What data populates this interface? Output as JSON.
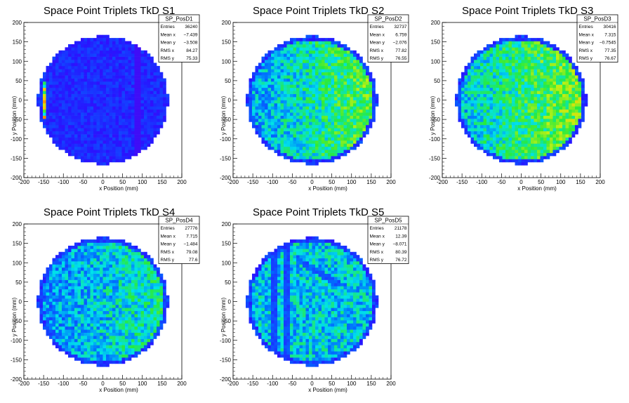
{
  "chart_data": [
    {
      "type": "heatmap",
      "title": "Space Point Triplets TkD S1",
      "xlabel": "x Position (mm)",
      "ylabel": "y Position (mm)",
      "xlim": [
        -200,
        200
      ],
      "ylim": [
        -200,
        200
      ],
      "xticks": [
        -200,
        -150,
        -100,
        -50,
        0,
        50,
        100,
        150,
        200
      ],
      "yticks": [
        -200,
        -150,
        -100,
        -50,
        0,
        50,
        100,
        150,
        200
      ],
      "legend": "top-right",
      "stats": {
        "name": "SP_PosD1",
        "rows": [
          {
            "label": "Entries",
            "value": "36240"
          },
          {
            "label": "Mean x",
            "value": "−7.439"
          },
          {
            "label": "Mean y",
            "value": "−3.508"
          },
          {
            "label": "RMS x",
            "value": "84.27"
          },
          {
            "label": "RMS y",
            "value": "75.33"
          }
        ]
      },
      "pattern": "low-blue",
      "occupancy_level": 0.15
    },
    {
      "type": "heatmap",
      "title": "Space Point Triplets TkD S2",
      "xlabel": "x Position (mm)",
      "ylabel": "y Position (mm)",
      "xlim": [
        -200,
        200
      ],
      "ylim": [
        -200,
        200
      ],
      "xticks": [
        -200,
        -150,
        -100,
        -50,
        0,
        50,
        100,
        150,
        200
      ],
      "yticks": [
        -200,
        -150,
        -100,
        -50,
        0,
        50,
        100,
        150,
        200
      ],
      "legend": "top-right",
      "stats": {
        "name": "SP_PosD2",
        "rows": [
          {
            "label": "Entries",
            "value": "32737"
          },
          {
            "label": "Mean x",
            "value": "6.759"
          },
          {
            "label": "Mean y",
            "value": "−2.076"
          },
          {
            "label": "RMS x",
            "value": "77.82"
          },
          {
            "label": "RMS y",
            "value": "76.55"
          }
        ]
      },
      "pattern": "green-yellow",
      "occupancy_level": 0.5
    },
    {
      "type": "heatmap",
      "title": "Space Point Triplets TkD S3",
      "xlabel": "x Position (mm)",
      "ylabel": "y Position (mm)",
      "xlim": [
        -200,
        200
      ],
      "ylim": [
        -200,
        200
      ],
      "xticks": [
        -200,
        -150,
        -100,
        -50,
        0,
        50,
        100,
        150,
        200
      ],
      "yticks": [
        -200,
        -150,
        -100,
        -50,
        0,
        50,
        100,
        150,
        200
      ],
      "legend": "top-right",
      "stats": {
        "name": "SP_PosD3",
        "rows": [
          {
            "label": "Entries",
            "value": "30416"
          },
          {
            "label": "Mean x",
            "value": "7.315"
          },
          {
            "label": "Mean y",
            "value": "−0.7545"
          },
          {
            "label": "RMS x",
            "value": "77.35"
          },
          {
            "label": "RMS y",
            "value": "76.67"
          }
        ]
      },
      "pattern": "green-yellow",
      "occupancy_level": 0.55
    },
    {
      "type": "heatmap",
      "title": "Space Point Triplets TkD S4",
      "xlabel": "x Position (mm)",
      "ylabel": "y Position (mm)",
      "xlim": [
        -200,
        200
      ],
      "ylim": [
        -200,
        200
      ],
      "xticks": [
        -200,
        -150,
        -100,
        -50,
        0,
        50,
        100,
        150,
        200
      ],
      "yticks": [
        -200,
        -150,
        -100,
        -50,
        0,
        50,
        100,
        150,
        200
      ],
      "legend": "top-right",
      "stats": {
        "name": "SP_PosD4",
        "rows": [
          {
            "label": "Entries",
            "value": "27776"
          },
          {
            "label": "Mean x",
            "value": "7.715"
          },
          {
            "label": "Mean y",
            "value": "−1.484"
          },
          {
            "label": "RMS x",
            "value": "79.08"
          },
          {
            "label": "RMS y",
            "value": "77.6"
          }
        ]
      },
      "pattern": "green",
      "occupancy_level": 0.42
    },
    {
      "type": "heatmap",
      "title": "Space Point Triplets TkD S5",
      "xlabel": "x Position (mm)",
      "ylabel": "y Position (mm)",
      "xlim": [
        -200,
        200
      ],
      "ylim": [
        -200,
        200
      ],
      "xticks": [
        -200,
        -150,
        -100,
        -50,
        0,
        50,
        100,
        150,
        200
      ],
      "yticks": [
        -200,
        -150,
        -100,
        -50,
        0,
        50,
        100,
        150,
        200
      ],
      "legend": "top-right",
      "stats": {
        "name": "SP_PosD5",
        "rows": [
          {
            "label": "Entries",
            "value": "21178"
          },
          {
            "label": "Mean x",
            "value": "12.39"
          },
          {
            "label": "Mean y",
            "value": "−8.071"
          },
          {
            "label": "RMS x",
            "value": "80.39"
          },
          {
            "label": "RMS y",
            "value": "76.72"
          }
        ]
      },
      "pattern": "green-bands",
      "occupancy_level": 0.42
    }
  ]
}
